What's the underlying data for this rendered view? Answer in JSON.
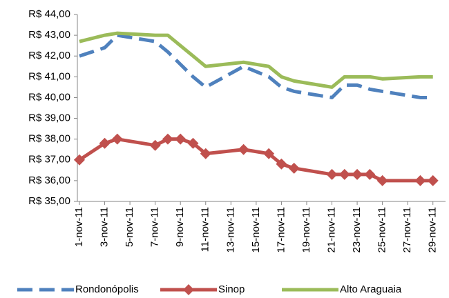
{
  "chart_data": {
    "type": "line",
    "x": [
      "2011-11-01",
      "2011-11-03",
      "2011-11-04",
      "2011-11-07",
      "2011-11-08",
      "2011-11-09",
      "2011-11-10",
      "2011-11-11",
      "2011-11-14",
      "2011-11-16",
      "2011-11-17",
      "2011-11-18",
      "2011-11-21",
      "2011-11-22",
      "2011-11-23",
      "2011-11-24",
      "2011-11-25",
      "2011-11-28",
      "2011-11-29"
    ],
    "xlim": [
      "2011-11-01",
      "2011-11-30"
    ],
    "xticks": [
      {
        "value": "2011-11-01",
        "label": "1-nov-11"
      },
      {
        "value": "2011-11-03",
        "label": "3-nov-11"
      },
      {
        "value": "2011-11-05",
        "label": "5-nov-11"
      },
      {
        "value": "2011-11-07",
        "label": "7-nov-11"
      },
      {
        "value": "2011-11-09",
        "label": "9-nov-11"
      },
      {
        "value": "2011-11-11",
        "label": "11-nov-11"
      },
      {
        "value": "2011-11-13",
        "label": "13-nov-11"
      },
      {
        "value": "2011-11-15",
        "label": "15-nov-11"
      },
      {
        "value": "2011-11-17",
        "label": "17-nov-11"
      },
      {
        "value": "2011-11-19",
        "label": "19-nov-11"
      },
      {
        "value": "2011-11-21",
        "label": "21-nov-11"
      },
      {
        "value": "2011-11-23",
        "label": "23-nov-11"
      },
      {
        "value": "2011-11-25",
        "label": "25-nov-11"
      },
      {
        "value": "2011-11-27",
        "label": "27-nov-11"
      },
      {
        "value": "2011-11-29",
        "label": "29-nov-11"
      }
    ],
    "ylim": [
      35,
      44
    ],
    "yticks": [
      {
        "value": 35,
        "label": "R$ 35,00"
      },
      {
        "value": 36,
        "label": "R$ 36,00"
      },
      {
        "value": 37,
        "label": "R$ 37,00"
      },
      {
        "value": 38,
        "label": "R$ 38,00"
      },
      {
        "value": 39,
        "label": "R$ 39,00"
      },
      {
        "value": 40,
        "label": "R$ 40,00"
      },
      {
        "value": 41,
        "label": "R$ 41,00"
      },
      {
        "value": 42,
        "label": "R$ 42,00"
      },
      {
        "value": 43,
        "label": "R$ 43,00"
      },
      {
        "value": 44,
        "label": "R$ 44,00"
      }
    ],
    "grid": false,
    "legend": "bottom",
    "series": [
      {
        "name": "Rondonópolis",
        "color": "#4f81bd",
        "dashed": true,
        "values": [
          42.0,
          42.4,
          43.0,
          42.7,
          42.2,
          41.6,
          41.0,
          40.5,
          41.5,
          41.0,
          40.5,
          40.3,
          40.0,
          40.6,
          40.6,
          40.4,
          40.3,
          40.0,
          40.0
        ]
      },
      {
        "name": "Sinop",
        "color": "#c0504d",
        "marker": "diamond",
        "values": [
          37.0,
          37.8,
          38.0,
          37.7,
          38.0,
          38.0,
          37.8,
          37.3,
          37.5,
          37.3,
          36.8,
          36.6,
          36.3,
          36.3,
          36.3,
          36.3,
          36.0,
          36.0,
          36.0
        ]
      },
      {
        "name": "Alto Araguaia",
        "color": "#9bbb59",
        "values": [
          42.7,
          43.0,
          43.1,
          43.0,
          43.0,
          42.5,
          42.0,
          41.5,
          41.7,
          41.5,
          41.0,
          40.8,
          40.5,
          41.0,
          41.0,
          41.0,
          40.9,
          41.0,
          41.0
        ]
      }
    ]
  }
}
